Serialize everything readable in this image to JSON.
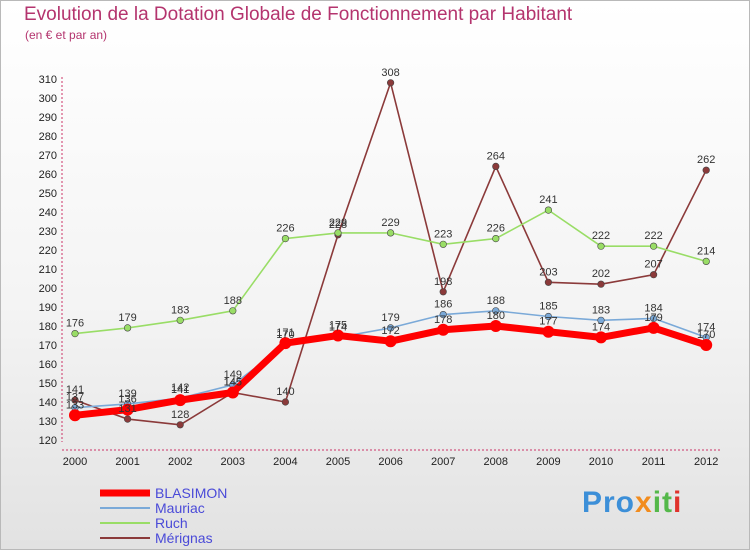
{
  "header": {
    "title": "Evolution de la Dotation Globale de Fonctionnement par Habitant",
    "subtitle": "(en € et par an)"
  },
  "logo": {
    "text": "Proxiti",
    "parts": [
      "Pro",
      "x",
      "it",
      "i"
    ]
  },
  "chart_data": {
    "type": "line",
    "title": "Evolution de la Dotation Globale de Fonctionnement par Habitant",
    "subtitle": "(en € et par an)",
    "xlabel": "",
    "ylabel": "",
    "x": [
      "2000",
      "2001",
      "2002",
      "2003",
      "2004",
      "2005",
      "2006",
      "2007",
      "2008",
      "2009",
      "2010",
      "2011",
      "2012"
    ],
    "ylim": [
      120,
      310
    ],
    "yticks": [
      120,
      130,
      140,
      150,
      160,
      170,
      180,
      190,
      200,
      210,
      220,
      230,
      240,
      250,
      260,
      270,
      280,
      290,
      300,
      310
    ],
    "grid": false,
    "legend_position": "bottom-left",
    "series": [
      {
        "name": "BLASIMON",
        "color": "#ff0000",
        "values": [
          133,
          136,
          141,
          145,
          171,
          175,
          172,
          178,
          180,
          177,
          174,
          179,
          170
        ]
      },
      {
        "name": "Mauriac",
        "color": "#7aa9d8",
        "values": [
          137,
          139,
          142,
          149,
          170,
          174,
          179,
          186,
          188,
          185,
          183,
          184,
          174
        ]
      },
      {
        "name": "Ruch",
        "color": "#99dd66",
        "values": [
          176,
          179,
          183,
          188,
          226,
          229,
          229,
          223,
          226,
          241,
          222,
          222,
          214
        ]
      },
      {
        "name": "Mérignas",
        "color": "#8b3a3a",
        "values": [
          141,
          131,
          128,
          145,
          140,
          228,
          308,
          198,
          264,
          203,
          202,
          207,
          262
        ]
      }
    ]
  }
}
